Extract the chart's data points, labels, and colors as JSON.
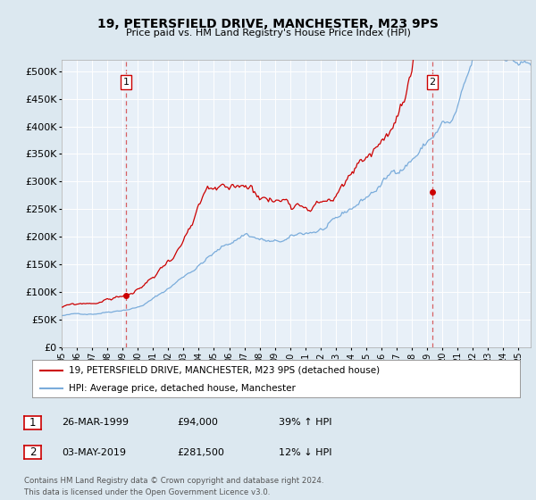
{
  "title": "19, PETERSFIELD DRIVE, MANCHESTER, M23 9PS",
  "subtitle": "Price paid vs. HM Land Registry's House Price Index (HPI)",
  "legend_line1": "19, PETERSFIELD DRIVE, MANCHESTER, M23 9PS (detached house)",
  "legend_line2": "HPI: Average price, detached house, Manchester",
  "annotation1_date": "26-MAR-1999",
  "annotation1_price": "£94,000",
  "annotation1_hpi": "39% ↑ HPI",
  "annotation2_date": "03-MAY-2019",
  "annotation2_price": "£281,500",
  "annotation2_hpi": "12% ↓ HPI",
  "footnote": "Contains HM Land Registry data © Crown copyright and database right 2024.\nThis data is licensed under the Open Government Licence v3.0.",
  "sale1_x": 1999.23,
  "sale1_y": 94000,
  "sale2_x": 2019.34,
  "sale2_y": 281500,
  "hpi_color": "#7aacdb",
  "price_color": "#cc0000",
  "dashed_line_color": "#cc0000",
  "background_color": "#dce8f0",
  "plot_bg_color": "#e8f0f8",
  "ylim": [
    0,
    520000
  ],
  "xlim_start": 1995.0,
  "xlim_end": 2025.8
}
